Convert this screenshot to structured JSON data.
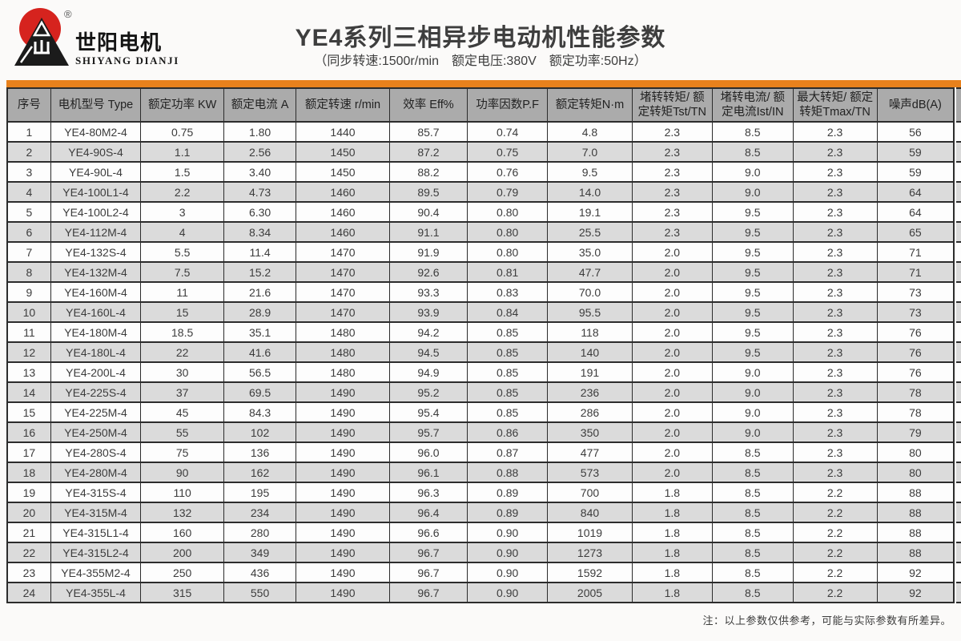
{
  "logo": {
    "company_name_cn": "世阳电机",
    "company_name_en": "SHIYANG DIANJI",
    "trademark": "®"
  },
  "header": {
    "title": "YE4系列三相异步电动机性能参数",
    "subtitle": "（同步转速:1500r/min　额定电压:380V　额定功率:50Hz）"
  },
  "table": {
    "columns": [
      "序号",
      "电机型号 Type",
      "额定功率 KW",
      "额定电流 A",
      "额定转速 r/min",
      "效率 Eff%",
      "功率因数P.F",
      "额定转矩N·m",
      "堵转转矩/ 额定转矩Tst/TN",
      "堵转电流/ 额定电流Ist/IN",
      "最大转矩/ 额定转矩Tmax/TN",
      "噪声dB(A)"
    ],
    "rows": [
      [
        "1",
        "YE4-80M2-4",
        "0.75",
        "1.80",
        "1440",
        "85.7",
        "0.74",
        "4.8",
        "2.3",
        "8.5",
        "2.3",
        "56"
      ],
      [
        "2",
        "YE4-90S-4",
        "1.1",
        "2.56",
        "1450",
        "87.2",
        "0.75",
        "7.0",
        "2.3",
        "8.5",
        "2.3",
        "59"
      ],
      [
        "3",
        "YE4-90L-4",
        "1.5",
        "3.40",
        "1450",
        "88.2",
        "0.76",
        "9.5",
        "2.3",
        "9.0",
        "2.3",
        "59"
      ],
      [
        "4",
        "YE4-100L1-4",
        "2.2",
        "4.73",
        "1460",
        "89.5",
        "0.79",
        "14.0",
        "2.3",
        "9.0",
        "2.3",
        "64"
      ],
      [
        "5",
        "YE4-100L2-4",
        "3",
        "6.30",
        "1460",
        "90.4",
        "0.80",
        "19.1",
        "2.3",
        "9.5",
        "2.3",
        "64"
      ],
      [
        "6",
        "YE4-112M-4",
        "4",
        "8.34",
        "1460",
        "91.1",
        "0.80",
        "25.5",
        "2.3",
        "9.5",
        "2.3",
        "65"
      ],
      [
        "7",
        "YE4-132S-4",
        "5.5",
        "11.4",
        "1470",
        "91.9",
        "0.80",
        "35.0",
        "2.0",
        "9.5",
        "2.3",
        "71"
      ],
      [
        "8",
        "YE4-132M-4",
        "7.5",
        "15.2",
        "1470",
        "92.6",
        "0.81",
        "47.7",
        "2.0",
        "9.5",
        "2.3",
        "71"
      ],
      [
        "9",
        "YE4-160M-4",
        "11",
        "21.6",
        "1470",
        "93.3",
        "0.83",
        "70.0",
        "2.0",
        "9.5",
        "2.3",
        "73"
      ],
      [
        "10",
        "YE4-160L-4",
        "15",
        "28.9",
        "1470",
        "93.9",
        "0.84",
        "95.5",
        "2.0",
        "9.5",
        "2.3",
        "73"
      ],
      [
        "11",
        "YE4-180M-4",
        "18.5",
        "35.1",
        "1480",
        "94.2",
        "0.85",
        "118",
        "2.0",
        "9.5",
        "2.3",
        "76"
      ],
      [
        "12",
        "YE4-180L-4",
        "22",
        "41.6",
        "1480",
        "94.5",
        "0.85",
        "140",
        "2.0",
        "9.5",
        "2.3",
        "76"
      ],
      [
        "13",
        "YE4-200L-4",
        "30",
        "56.5",
        "1480",
        "94.9",
        "0.85",
        "191",
        "2.0",
        "9.0",
        "2.3",
        "76"
      ],
      [
        "14",
        "YE4-225S-4",
        "37",
        "69.5",
        "1490",
        "95.2",
        "0.85",
        "236",
        "2.0",
        "9.0",
        "2.3",
        "78"
      ],
      [
        "15",
        "YE4-225M-4",
        "45",
        "84.3",
        "1490",
        "95.4",
        "0.85",
        "286",
        "2.0",
        "9.0",
        "2.3",
        "78"
      ],
      [
        "16",
        "YE4-250M-4",
        "55",
        "102",
        "1490",
        "95.7",
        "0.86",
        "350",
        "2.0",
        "9.0",
        "2.3",
        "79"
      ],
      [
        "17",
        "YE4-280S-4",
        "75",
        "136",
        "1490",
        "96.0",
        "0.87",
        "477",
        "2.0",
        "8.5",
        "2.3",
        "80"
      ],
      [
        "18",
        "YE4-280M-4",
        "90",
        "162",
        "1490",
        "96.1",
        "0.88",
        "573",
        "2.0",
        "8.5",
        "2.3",
        "80"
      ],
      [
        "19",
        "YE4-315S-4",
        "110",
        "195",
        "1490",
        "96.3",
        "0.89",
        "700",
        "1.8",
        "8.5",
        "2.2",
        "88"
      ],
      [
        "20",
        "YE4-315M-4",
        "132",
        "234",
        "1490",
        "96.4",
        "0.89",
        "840",
        "1.8",
        "8.5",
        "2.2",
        "88"
      ],
      [
        "21",
        "YE4-315L1-4",
        "160",
        "280",
        "1490",
        "96.6",
        "0.90",
        "1019",
        "1.8",
        "8.5",
        "2.2",
        "88"
      ],
      [
        "22",
        "YE4-315L2-4",
        "200",
        "349",
        "1490",
        "96.7",
        "0.90",
        "1273",
        "1.8",
        "8.5",
        "2.2",
        "88"
      ],
      [
        "23",
        "YE4-355M2-4",
        "250",
        "436",
        "1490",
        "96.7",
        "0.90",
        "1592",
        "1.8",
        "8.5",
        "2.2",
        "92"
      ],
      [
        "24",
        "YE4-355L-4",
        "315",
        "550",
        "1490",
        "96.7",
        "0.90",
        "2005",
        "1.8",
        "8.5",
        "2.2",
        "92"
      ]
    ]
  },
  "footer": {
    "note": "注：以上参数仅供参考，可能与实际参数有所差异。"
  },
  "colors": {
    "accent_orange": "#E8811C",
    "logo_red": "#D6231E",
    "header_gray": "#ABABAB",
    "row_white": "#FDFDFD",
    "row_alt_gray": "#DBDBDB",
    "grid_dark": "#2C2C2C"
  }
}
